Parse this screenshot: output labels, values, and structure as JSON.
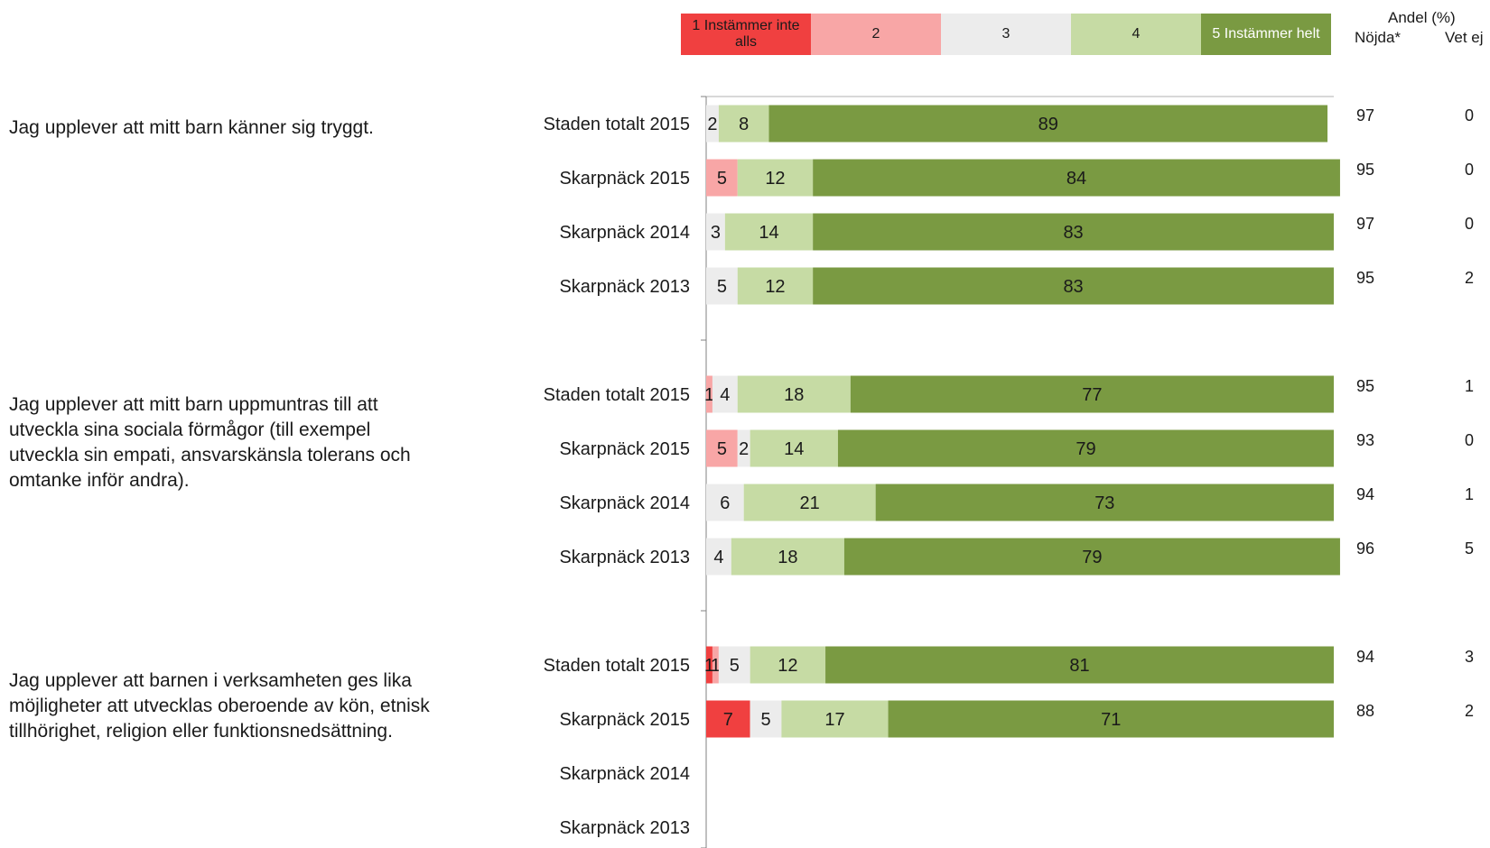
{
  "legend": [
    {
      "label": "1 Instämmer inte alls",
      "color": "#f04040"
    },
    {
      "label": "2",
      "color": "#f8a6a6"
    },
    {
      "label": "3",
      "color": "#ececec"
    },
    {
      "label": "4",
      "color": "#c6dba4"
    },
    {
      "label": "5 Instämmer helt",
      "color": "#7a9a42"
    }
  ],
  "headers": {
    "andel": "Andel (%)",
    "nojda": "Nöjda*",
    "vet_ej": "Vet ej"
  },
  "questions": [
    {
      "text": "Jag upplever att mitt barn känner sig tryggt."
    },
    {
      "text": "Jag upplever att mitt barn uppmuntras till att utveckla sina sociala förmågor (till exempel utveckla sin empati, ansvarskänsla tolerans och omtanke inför andra)."
    },
    {
      "text": "Jag upplever att barnen i verksamheten ges lika möjligheter att utvecklas oberoende av kön, etnisk tillhörighet, religion eller funktionsnedsättning."
    }
  ],
  "chart_data": {
    "type": "bar",
    "orientation": "horizontal",
    "stacked": true,
    "xlim": [
      0,
      100
    ],
    "series_names": [
      "1 Instämmer inte alls",
      "2",
      "3",
      "4",
      "5 Instämmer helt"
    ],
    "rows": [
      {
        "group": 0,
        "label": "Staden totalt 2015",
        "values": [
          0,
          0,
          2,
          8,
          89
        ],
        "nojda": "97",
        "vet_ej": "0"
      },
      {
        "group": 0,
        "label": "Skarpnäck 2015",
        "values": [
          0,
          5,
          0,
          12,
          84
        ],
        "nojda": "95",
        "vet_ej": "0"
      },
      {
        "group": 0,
        "label": "Skarpnäck 2014",
        "values": [
          0,
          0,
          3,
          14,
          83
        ],
        "nojda": "97",
        "vet_ej": "0"
      },
      {
        "group": 0,
        "label": "Skarpnäck 2013",
        "values": [
          0,
          0,
          5,
          12,
          83
        ],
        "nojda": "95",
        "vet_ej": "2"
      },
      {
        "group": 1,
        "label": "Staden totalt 2015",
        "values": [
          0,
          1,
          4,
          18,
          77
        ],
        "nojda": "95",
        "vet_ej": "1"
      },
      {
        "group": 1,
        "label": "Skarpnäck 2015",
        "values": [
          0,
          5,
          2,
          14,
          79
        ],
        "nojda": "93",
        "vet_ej": "0"
      },
      {
        "group": 1,
        "label": "Skarpnäck 2014",
        "values": [
          0,
          0,
          6,
          21,
          73
        ],
        "nojda": "94",
        "vet_ej": "1"
      },
      {
        "group": 1,
        "label": "Skarpnäck 2013",
        "values": [
          0,
          0,
          4,
          18,
          79
        ],
        "nojda": "96",
        "vet_ej": "5"
      },
      {
        "group": 2,
        "label": "Staden totalt 2015",
        "values": [
          1,
          1,
          5,
          12,
          81
        ],
        "nojda": "94",
        "vet_ej": "3"
      },
      {
        "group": 2,
        "label": "Skarpnäck 2015",
        "values": [
          7,
          0,
          5,
          17,
          71
        ],
        "nojda": "88",
        "vet_ej": "2"
      },
      {
        "group": 2,
        "label": "Skarpnäck 2014",
        "values": [],
        "nojda": "",
        "vet_ej": ""
      },
      {
        "group": 2,
        "label": "Skarpnäck 2013",
        "values": [],
        "nojda": "",
        "vet_ej": ""
      }
    ]
  }
}
